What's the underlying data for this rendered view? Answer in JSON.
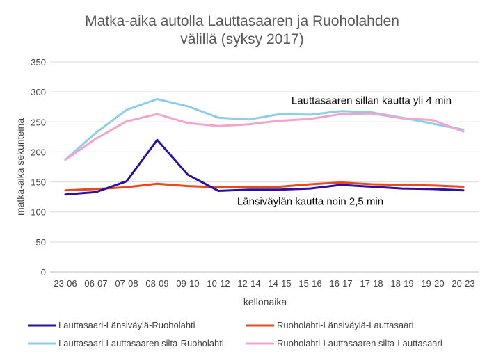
{
  "chart_data": {
    "type": "line",
    "title_lines": [
      "Matka-aika autolla Lauttasaaren ja Ruoholahden",
      "välillä (syksy 2017)"
    ],
    "xlabel": "kellonaika",
    "ylabel": "matka-aika sekunteina",
    "ylim": [
      0,
      350
    ],
    "yticks": [
      0,
      50,
      100,
      150,
      200,
      250,
      300,
      350
    ],
    "grid": "horizontal",
    "legend_position": "bottom",
    "categories": [
      "23-06",
      "06-07",
      "07-08",
      "08-09",
      "09-10",
      "10-12",
      "12-14",
      "14-15",
      "15-16",
      "16-17",
      "17-18",
      "18-19",
      "19-20",
      "20-23"
    ],
    "series": [
      {
        "name": "Lauttasaari-Länsiväylä-Ruoholahti",
        "color": "#2e0fa6",
        "values": [
          129,
          133,
          151,
          220,
          162,
          135,
          137,
          137,
          139,
          145,
          142,
          139,
          138,
          136
        ]
      },
      {
        "name": "Ruoholahti-Länsiväylä-Lauttasaari",
        "color": "#e8491d",
        "values": [
          136,
          138,
          141,
          147,
          143,
          141,
          141,
          142,
          146,
          149,
          146,
          145,
          144,
          142
        ]
      },
      {
        "name": "Lauttasaari-Lauttasaaren silta-Ruoholahti",
        "color": "#8ecdea",
        "values": [
          187,
          232,
          270,
          288,
          276,
          257,
          254,
          263,
          262,
          268,
          266,
          257,
          247,
          237
        ]
      },
      {
        "name": "Ruoholahti-Lauttasaaren silta-Lauttasaari",
        "color": "#f4a4ca",
        "values": [
          187,
          222,
          251,
          263,
          248,
          243,
          246,
          252,
          255,
          263,
          264,
          256,
          253,
          234
        ]
      }
    ],
    "annotations": [
      {
        "text": "Lauttasaaren sillan kautta yli 4 min",
        "anchor_category": "17-18",
        "anchor_value": 280
      },
      {
        "text": "Länsiväylän kautta noin 2,5 min",
        "anchor_category": "15-16",
        "anchor_value": 112
      }
    ]
  }
}
